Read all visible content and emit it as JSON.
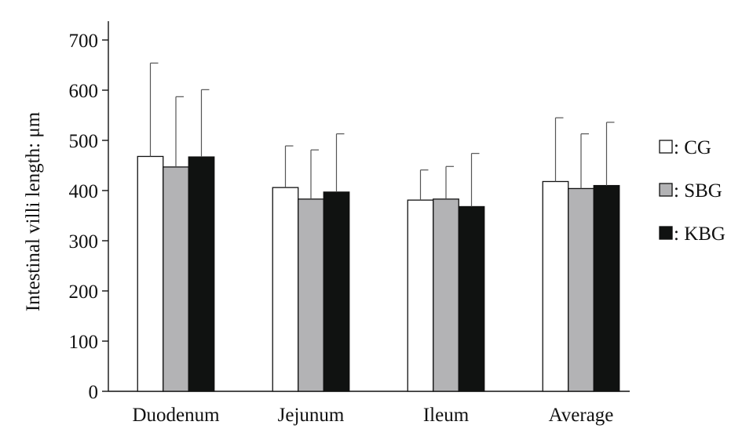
{
  "chart_data": {
    "type": "bar",
    "title": "",
    "xlabel": "",
    "ylabel": "Intestinal villi length: μm",
    "ylim": [
      0,
      700
    ],
    "yticks": [
      0,
      100,
      200,
      300,
      400,
      500,
      600,
      700
    ],
    "categories": [
      "Duodenum",
      "Jejunum",
      "Ileum",
      "Average"
    ],
    "series": [
      {
        "name": "CG",
        "color": "#ffffff",
        "values": [
          468,
          406,
          381,
          418
        ],
        "errors": [
          186,
          83,
          60,
          127
        ]
      },
      {
        "name": "SBG",
        "color": "#b3b3b5",
        "values": [
          447,
          383,
          383,
          404
        ],
        "errors": [
          140,
          98,
          65,
          109
        ]
      },
      {
        "name": "KBG",
        "color": "#101211",
        "values": [
          467,
          397,
          368,
          410
        ],
        "errors": [
          134,
          116,
          106,
          126
        ]
      }
    ],
    "legend_prefix": ": ",
    "legend_position": "right",
    "grid": false
  }
}
